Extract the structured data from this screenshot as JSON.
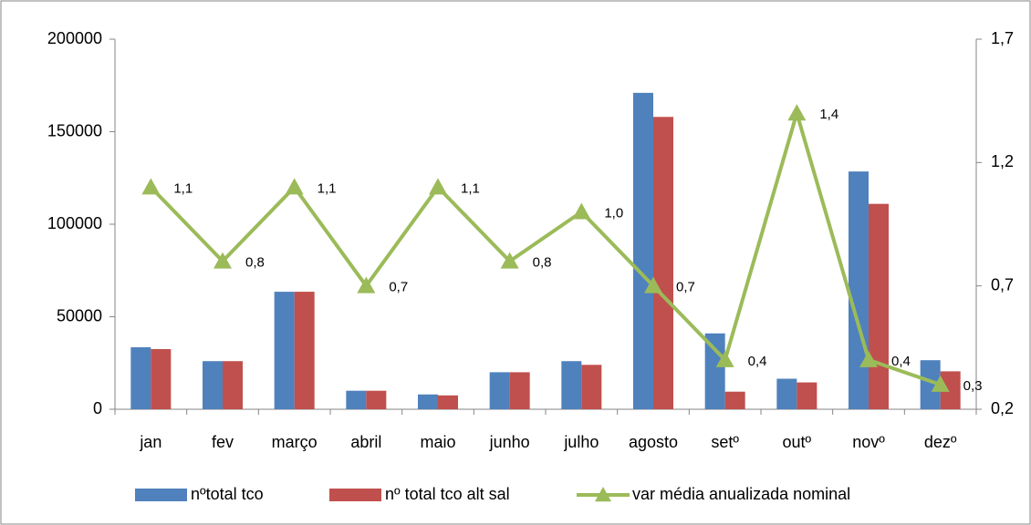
{
  "chart_data": {
    "type": "bar",
    "categories": [
      "jan",
      "fev",
      "março",
      "abril",
      "maio",
      "junho",
      "julho",
      "agosto",
      "setº",
      "outº",
      "novº",
      "dezº"
    ],
    "series": [
      {
        "name": "nºtotal tco",
        "color": "#4f81bd",
        "values": [
          33500,
          26000,
          63500,
          10000,
          8000,
          20000,
          26000,
          171000,
          41000,
          16500,
          128500,
          26500
        ]
      },
      {
        "name": "nº total tco alt sal",
        "color": "#c0504d",
        "values": [
          32500,
          26000,
          63500,
          10000,
          7500,
          20000,
          24000,
          158000,
          9500,
          14500,
          111000,
          20500
        ]
      },
      {
        "name": "var média anualizada nominal",
        "color": "#9bbb59",
        "type": "line",
        "axis": "y2",
        "marker": "triangle",
        "values": [
          1.1,
          0.8,
          1.1,
          0.7,
          1.1,
          0.8,
          1.0,
          0.7,
          0.4,
          1.4,
          0.4,
          0.3
        ],
        "value_labels": [
          "1,1",
          "0,8",
          "1,1",
          "0,7",
          "1,1",
          "0,8",
          "1,0",
          "0,7",
          "0,4",
          "1,4",
          "0,4",
          "0,3"
        ]
      }
    ],
    "ylim": [
      0,
      200000
    ],
    "yticks": [
      0,
      50000,
      100000,
      150000,
      200000
    ],
    "y2lim": [
      0.2,
      1.7
    ],
    "y2ticks": [
      {
        "value": 0.2,
        "label": "0,2"
      },
      {
        "value": 0.7,
        "label": "0,7"
      },
      {
        "value": 1.2,
        "label": "1,2"
      },
      {
        "value": 1.7,
        "label": "1,7"
      }
    ],
    "legend": "bottom"
  }
}
